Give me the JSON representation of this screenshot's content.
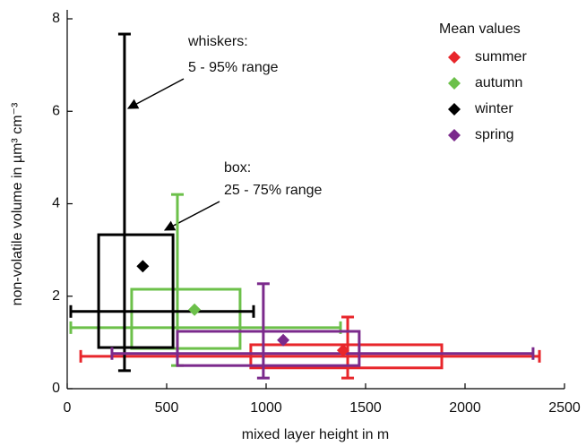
{
  "chart_data": {
    "type": "box2d",
    "x_label": "mixed layer height in m",
    "y_label": "non-volatile volume in µm³ cm⁻³",
    "legend_title": "Mean values",
    "annotations": [
      "whiskers:",
      "5 - 95% range",
      "box:",
      "25 - 75% range"
    ],
    "xlim": [
      0,
      2500
    ],
    "xticks": [
      0,
      500,
      1000,
      1500,
      2000,
      2500
    ],
    "ylim": [
      0,
      8
    ],
    "yticks": [
      0,
      2,
      4,
      6,
      8
    ],
    "series": [
      {
        "name": "summer",
        "color": "#e8262b",
        "x_mean": 1387,
        "y_mean": 0.83,
        "x_box": [
          923,
          1883
        ],
        "y_box": [
          0.45,
          0.95
        ],
        "x_whisker": [
          68,
          2374
        ],
        "y_whisker": [
          0.23,
          1.55
        ],
        "x_median": 1410,
        "y_median": 0.7
      },
      {
        "name": "autumn",
        "color": "#6cc04a",
        "x_mean": 640,
        "y_mean": 1.71,
        "x_box": [
          324,
          869
        ],
        "y_box": [
          0.87,
          2.15
        ],
        "x_whisker": [
          18,
          1374
        ],
        "y_whisker": [
          0.5,
          4.2
        ],
        "x_median": 554,
        "y_median": 1.32
      },
      {
        "name": "winter",
        "color": "#000000",
        "x_mean": 380,
        "y_mean": 2.65,
        "x_box": [
          158,
          532
        ],
        "y_box": [
          0.89,
          3.33
        ],
        "x_whisker": [
          18,
          937
        ],
        "y_whisker": [
          0.39,
          7.67
        ],
        "x_median": 288,
        "y_median": 1.67
      },
      {
        "name": "spring",
        "color": "#7b2a8c",
        "x_mean": 1086,
        "y_mean": 1.05,
        "x_box": [
          554,
          1468
        ],
        "y_box": [
          0.5,
          1.24
        ],
        "x_whisker": [
          225,
          2342
        ],
        "y_whisker": [
          0.23,
          2.27
        ],
        "x_median": 986,
        "y_median": 0.76
      }
    ]
  }
}
